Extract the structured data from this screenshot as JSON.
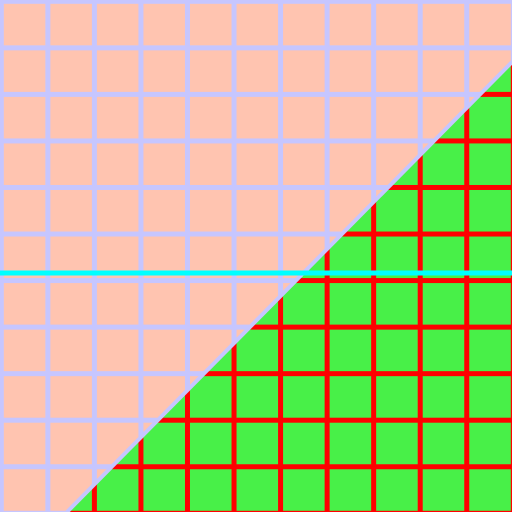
{
  "colors": {
    "upper_fill": "#FFC4B0",
    "upper_grid": "#C6C6FF",
    "lower_fill": "#48F048",
    "lower_grid": "#FF0000",
    "boundary": "#C6C6FF",
    "highlight_line": "#00FFFF"
  },
  "grid": {
    "cells": 11
  }
}
